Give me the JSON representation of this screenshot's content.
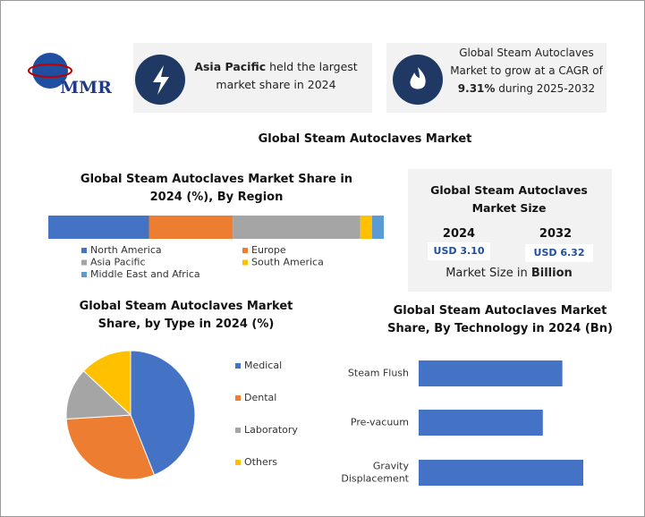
{
  "logo": {
    "text": "MMR"
  },
  "highlights": [
    {
      "parts": [
        "Asia Pacific",
        " held the largest market share in 2024"
      ]
    },
    {
      "parts": [
        "Global Steam Autoclaves Market to grow at a CAGR of ",
        "9.31%",
        " during 2025-2032"
      ]
    }
  ],
  "main_title": "Global Steam Autoclaves Market",
  "market_size": {
    "title": "Global Steam Autoclaves Market Size",
    "years": [
      "2024",
      "2032"
    ],
    "amounts": [
      "USD 3.10",
      "USD 6.32"
    ],
    "caption": [
      "Market Size in ",
      "Billion"
    ]
  },
  "chart_data": [
    {
      "type": "stacked-bar",
      "title": "Global Steam Autoclaves Market Share in 2024 (%), By Region",
      "xlim": [
        0,
        100
      ],
      "series": [
        {
          "name": "North America",
          "color": "#4472c4",
          "values": [
            30
          ]
        },
        {
          "name": "Europe",
          "color": "#ed7d31",
          "values": [
            25
          ]
        },
        {
          "name": "Asia Pacific",
          "color": "#a5a5a5",
          "values": [
            38
          ]
        },
        {
          "name": "South America",
          "color": "#ffc000",
          "values": [
            3.5
          ]
        },
        {
          "name": "Middle East and Africa",
          "color": "#5b9bd5",
          "values": [
            3.5
          ]
        }
      ]
    },
    {
      "type": "pie",
      "title": "Global Steam Autoclaves Market Share, by Type in 2024 (%)",
      "categories": [
        "Medical",
        "Dental",
        "Laboratory",
        "Others"
      ],
      "values": [
        44,
        30,
        13,
        13
      ],
      "colors": [
        "#4472c4",
        "#ed7d31",
        "#a5a5a5",
        "#ffc000"
      ]
    },
    {
      "type": "hbar",
      "title": "Global Steam Autoclaves Market Share, By Technology in 2024 (Bn)",
      "categories": [
        "Steam Flush",
        "Pre-vacuum",
        "Gravity Displacement"
      ],
      "values": [
        1.03,
        0.89,
        1.18
      ],
      "color": "#4472c4"
    }
  ]
}
